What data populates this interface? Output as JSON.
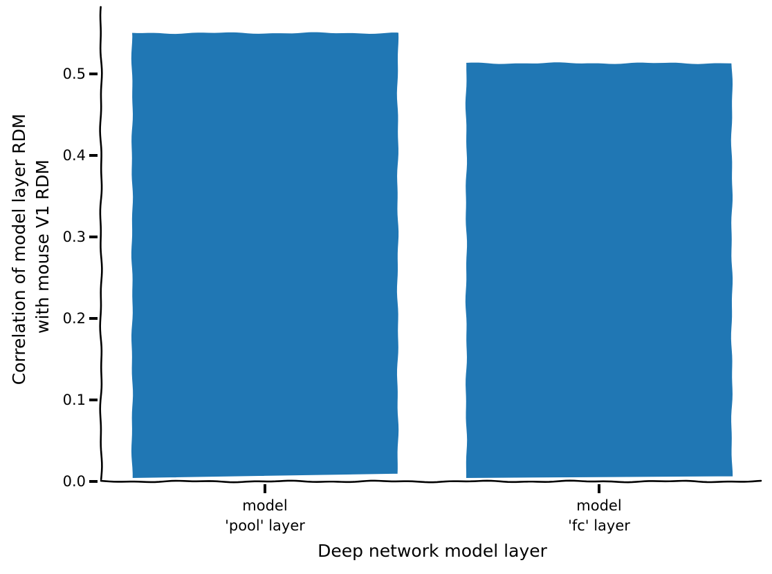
{
  "chart_data": {
    "type": "bar",
    "categories": [
      [
        "model",
        "'pool' layer"
      ],
      [
        "model",
        "'fc' layer"
      ]
    ],
    "values": [
      0.551,
      0.514
    ],
    "xlabel": "Deep network model layer",
    "ylabel": [
      "Correlation of model layer RDM",
      "with mouse V1 RDM"
    ],
    "ylim": [
      0,
      0.58
    ],
    "yticks": [
      "0.0",
      "0.1",
      "0.2",
      "0.3",
      "0.4",
      "0.5"
    ],
    "bar_color": "#2077b4",
    "grid": false,
    "legend": "none",
    "style": "xkcd"
  }
}
